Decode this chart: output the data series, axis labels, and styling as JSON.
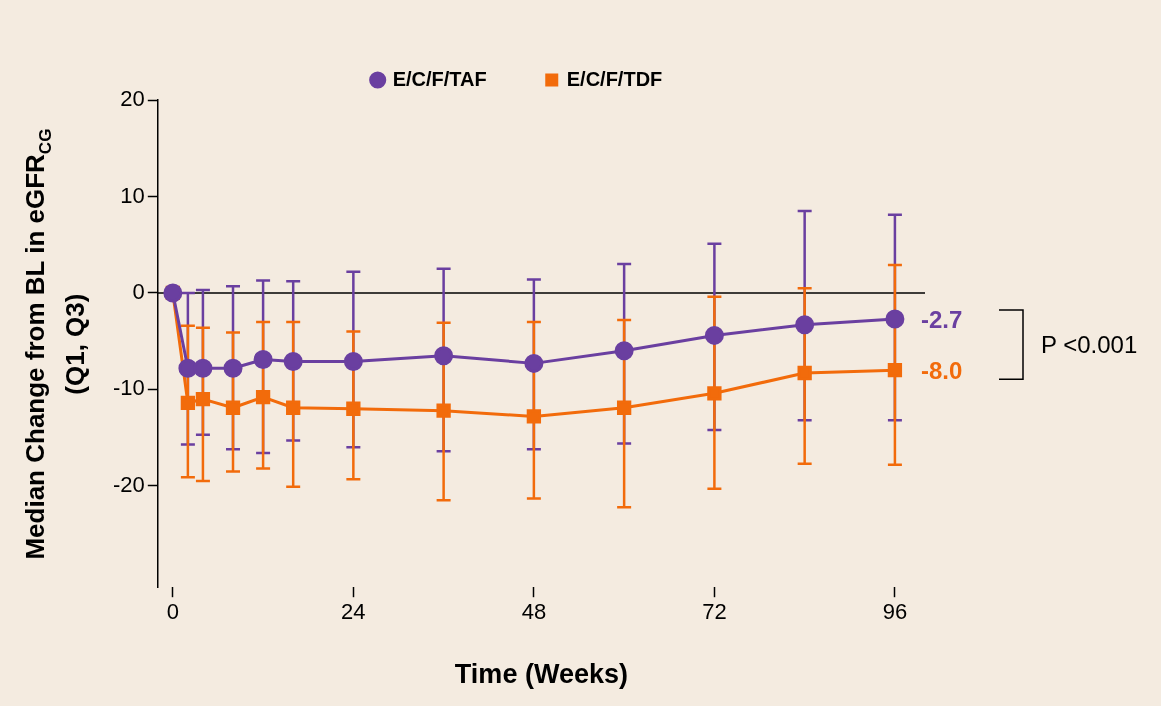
{
  "chart_data": {
    "type": "line",
    "xlabel": "Time (Weeks)",
    "ylabel": "Median Change from BL in eGFR$_{CG}$\n(Q1, Q3)",
    "xlim": [
      -2,
      100
    ],
    "xticks": [
      0,
      24,
      48,
      72,
      96
    ],
    "ylim": [
      -30.5,
      20
    ],
    "yticks": [
      -20,
      -10,
      0,
      10,
      20
    ],
    "grid": false,
    "legend": "top",
    "line_style": "solid",
    "series": [
      {
        "name": "E/C/F/TAF",
        "color": "#6a3fa0",
        "marker": "circle",
        "x": [
          0,
          2,
          4,
          8,
          12,
          16,
          24,
          36,
          48,
          60,
          72,
          84,
          96
        ],
        "values": [
          0,
          -7.8,
          -7.8,
          -7.8,
          -6.9,
          -7.1,
          -7.1,
          -6.5,
          -7.3,
          -6.0,
          -4.4,
          -3.3,
          -2.7
        ],
        "errors": [
          null,
          [
            -15.7,
            0
          ],
          [
            -14.7,
            0.3
          ],
          [
            -16.2,
            0.7
          ],
          [
            -16.6,
            1.3
          ],
          [
            -15.3,
            1.2
          ],
          [
            -16.0,
            2.2
          ],
          [
            -16.4,
            2.5
          ],
          [
            -16.2,
            1.4
          ],
          [
            -15.6,
            3.0
          ],
          [
            -14.2,
            5.1
          ],
          [
            -13.2,
            8.5
          ],
          [
            -13.2,
            8.1
          ]
        ]
      },
      {
        "name": "E/C/F/TDF",
        "color": "#f26b0b",
        "marker": "square",
        "x": [
          0,
          2,
          4,
          8,
          12,
          16,
          24,
          36,
          48,
          60,
          72,
          84,
          96
        ],
        "values": [
          0,
          -11.4,
          -11.0,
          -11.9,
          -10.8,
          -11.9,
          -12.0,
          -12.2,
          -12.8,
          -11.9,
          -10.4,
          -8.3,
          -8.0
        ],
        "errors": [
          null,
          [
            -19.1,
            -3.4
          ],
          [
            -19.5,
            -3.6
          ],
          [
            -18.5,
            -4.1
          ],
          [
            -18.2,
            -3.0
          ],
          [
            -20.1,
            -3.0
          ],
          [
            -19.3,
            -4.0
          ],
          [
            -21.5,
            -3.1
          ],
          [
            -21.3,
            -3.0
          ],
          [
            -22.2,
            -2.8
          ],
          [
            -20.3,
            -0.4
          ],
          [
            -17.7,
            0.5
          ],
          [
            -17.8,
            2.9
          ]
        ]
      }
    ],
    "ref_lines": [
      {
        "axis": "y",
        "value": 0,
        "color": "#000000"
      }
    ],
    "annotations": [
      {
        "text": "-2.7",
        "x": 96,
        "y": -2.7
      },
      {
        "text": "-8.0",
        "x": 96,
        "y": -8.0
      },
      "P <0.001"
    ]
  }
}
